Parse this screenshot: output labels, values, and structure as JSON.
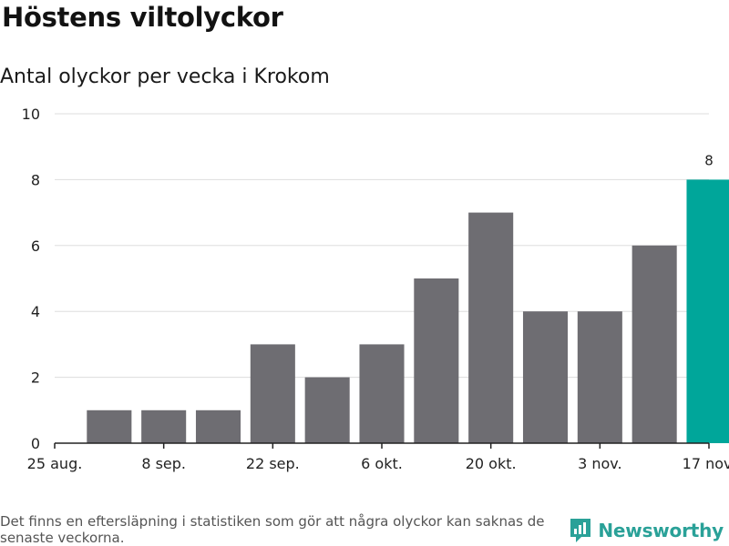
{
  "header": {
    "title": "Höstens viltolyckor",
    "subtitle": "Antal olyckor per vecka i Krokom"
  },
  "chart_data": {
    "type": "bar",
    "title": "Höstens viltolyckor",
    "subtitle": "Antal olyckor per vecka i Krokom",
    "x_ticks": [
      "25 aug.",
      "8 sep.",
      "22 sep.",
      "6 okt.",
      "20 okt.",
      "3 nov.",
      "17 nov."
    ],
    "values": [
      1,
      1,
      1,
      3,
      2,
      3,
      5,
      7,
      4,
      4,
      6,
      8
    ],
    "highlight_index": 11,
    "data_labels": [
      {
        "index": 11,
        "text": "8"
      }
    ],
    "ylim": [
      0,
      10
    ],
    "y_ticks": [
      0,
      2,
      4,
      6,
      8,
      10
    ],
    "grid": true,
    "xlabel": "",
    "ylabel": ""
  },
  "colors": {
    "bar": "#6e6d72",
    "highlight": "#00a69a",
    "grid": "#dddddd",
    "axis": "#222222",
    "brand": "#2aa198"
  },
  "footer": {
    "note": "Det finns en eftersläpning i statistiken som gör att några olyckor kan saknas de senaste veckorna.",
    "brand": "Newsworthy"
  }
}
